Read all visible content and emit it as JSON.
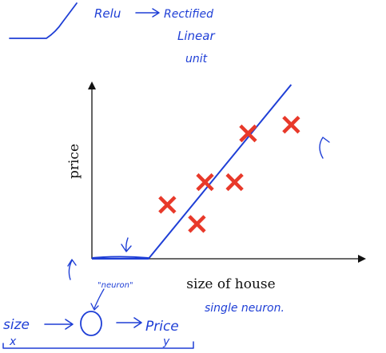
{
  "notes": {
    "relu_label": "Relu",
    "relu_meaning_1": "Rectified",
    "relu_meaning_2": "Linear",
    "relu_meaning_3": "unit",
    "neuron_label": "\"neuron\"",
    "single_neuron": "single neuron.",
    "input_label": "size",
    "output_label": "Price",
    "x_var": "x",
    "y_var": "y"
  },
  "colors": {
    "ink": "#1f3fd6",
    "marker": "#e8392a",
    "axis": "#111111"
  },
  "chart_data": {
    "type": "scatter",
    "xlabel": "size of house",
    "ylabel": "price",
    "grid": false,
    "xlim": [
      0,
      10
    ],
    "ylim": [
      0,
      10
    ],
    "points": [
      {
        "x": 2.8,
        "y": 3.1
      },
      {
        "x": 3.9,
        "y": 2.0
      },
      {
        "x": 4.2,
        "y": 4.4
      },
      {
        "x": 5.3,
        "y": 4.4
      },
      {
        "x": 5.8,
        "y": 7.2
      },
      {
        "x": 7.4,
        "y": 7.7
      }
    ],
    "fit_line": [
      {
        "x": 0.0,
        "y": 0.0
      },
      {
        "x": 2.1,
        "y": 0.0
      },
      {
        "x": 7.4,
        "y": 10.0
      }
    ]
  }
}
